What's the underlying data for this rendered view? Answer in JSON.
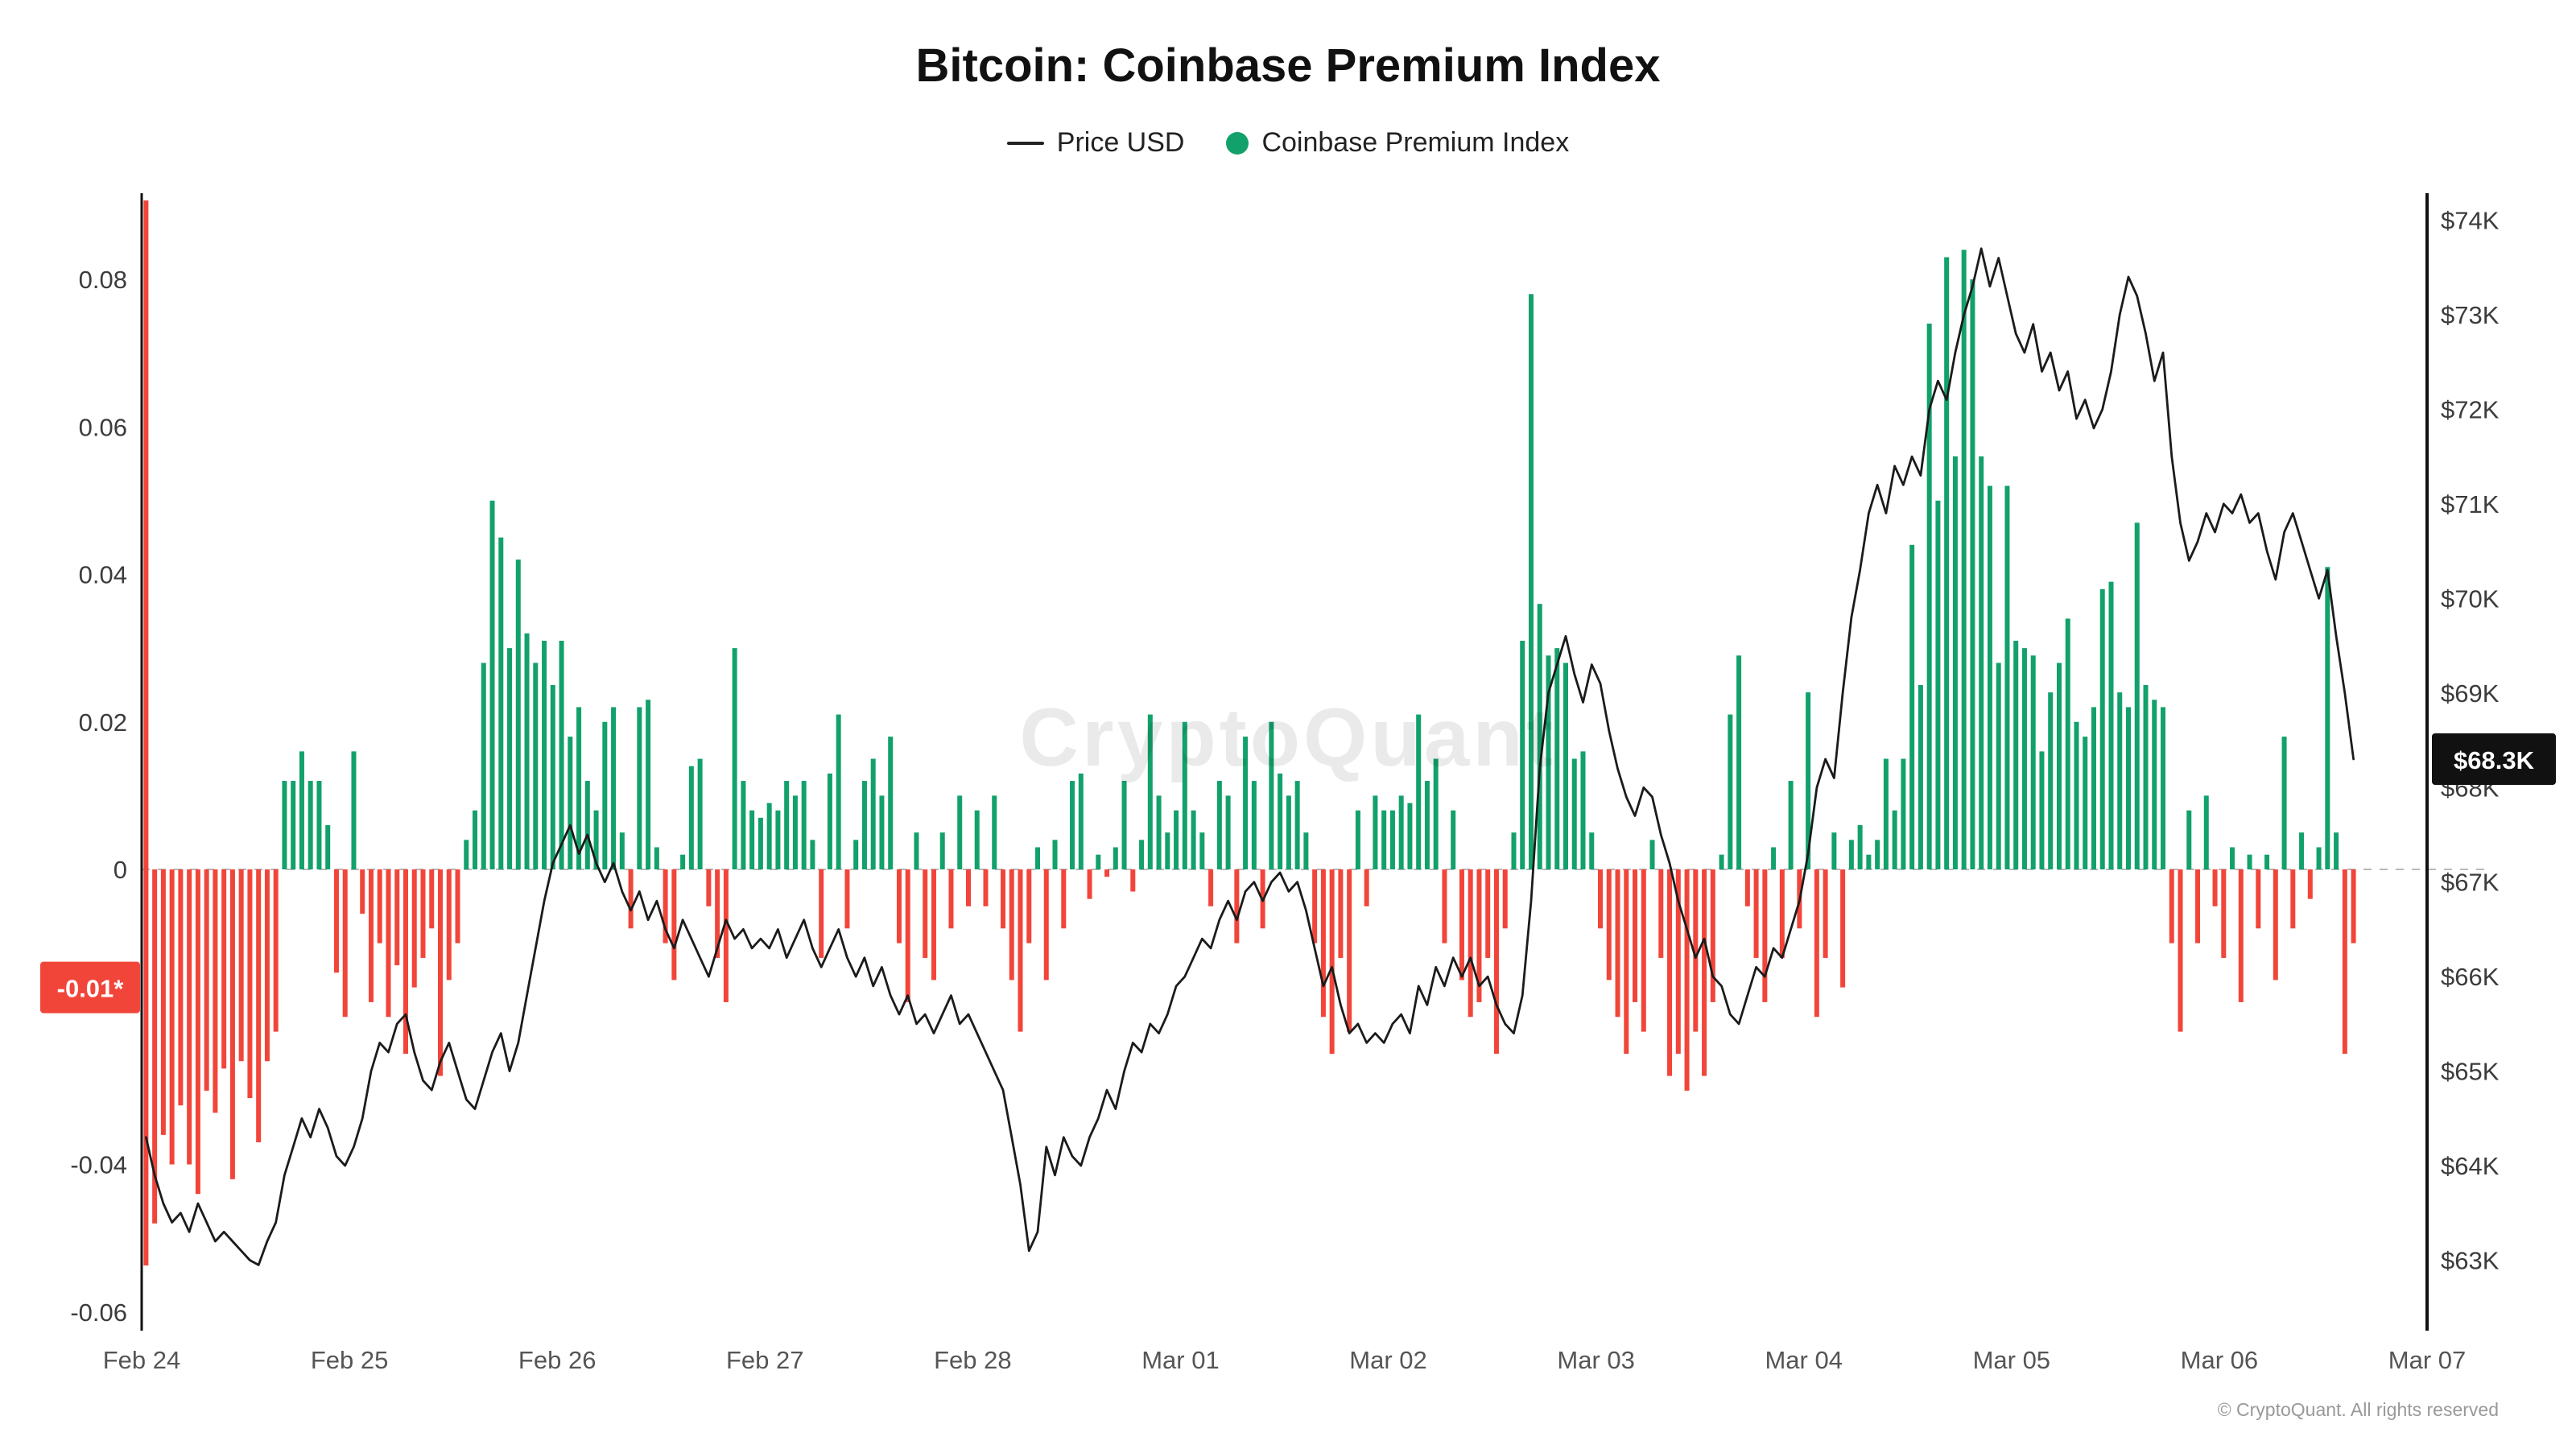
{
  "title": "Bitcoin: Coinbase Premium Index",
  "legend": {
    "price_label": "Price USD",
    "premium_label": "Coinbase Premium Index"
  },
  "watermark": "CryptoQuant",
  "footer": "© CryptoQuant. All rights reserved",
  "colors": {
    "positive": "#12a16b",
    "negative": "#f2453a",
    "price_line": "#1b1b1b",
    "zero_line": "#b8b8b8",
    "axis_line": "#111111",
    "tick_text": "#3c3c3c",
    "x_text": "#555555",
    "badge_premium_bg": "#f2453a",
    "badge_price_bg": "#111111",
    "badge_text": "#ffffff"
  },
  "badges": {
    "premium": {
      "text": "-0.01*",
      "position_value": -0.016
    },
    "price": {
      "text": "$68.3K",
      "position_value": 68.3
    }
  },
  "axes": {
    "left": {
      "values": [
        0.08,
        0.06,
        0.04,
        0.02,
        0,
        -0.04,
        -0.06
      ],
      "labels": [
        "0.08",
        "0.06",
        "0.04",
        "0.02",
        "0",
        "-0.04",
        "-0.06"
      ],
      "range": [
        -0.0625,
        0.0917
      ]
    },
    "right": {
      "values": [
        74,
        73,
        72,
        71,
        70,
        69,
        68,
        67,
        66,
        65,
        64,
        63
      ],
      "labels": [
        "$74K",
        "$73K",
        "$72K",
        "$71K",
        "$70K",
        "$69K",
        "$68K",
        "$67K",
        "$66K",
        "$65K",
        "$64K",
        "$63K"
      ],
      "range": [
        62.3,
        74.3
      ]
    },
    "x": {
      "labels": [
        "Feb 24",
        "Feb 25",
        "Feb 26",
        "Feb 27",
        "Feb 28",
        "Mar 01",
        "Mar 02",
        "Mar 03",
        "Mar 04",
        "Mar 05",
        "Mar 06",
        "Mar 07"
      ],
      "days_span": 11
    }
  },
  "chart_data": {
    "type": "bar",
    "x_start": "Feb 24 00:00",
    "interval": "1h",
    "grid": false,
    "legend_position": "top",
    "first_bar_full_span": true,
    "series": [
      {
        "name": "Coinbase Premium Index",
        "type": "bar",
        "axis": "left",
        "values": [
          -0.055,
          -0.048,
          -0.036,
          -0.04,
          -0.032,
          -0.04,
          -0.044,
          -0.03,
          -0.033,
          -0.027,
          -0.042,
          -0.026,
          -0.031,
          -0.037,
          -0.026,
          -0.022,
          0.012,
          0.012,
          0.016,
          0.012,
          0.012,
          0.006,
          -0.014,
          -0.02,
          0.016,
          -0.006,
          -0.018,
          -0.01,
          -0.02,
          -0.013,
          -0.025,
          -0.016,
          -0.012,
          -0.008,
          -0.028,
          -0.015,
          -0.01,
          0.004,
          0.008,
          0.028,
          0.05,
          0.045,
          0.03,
          0.042,
          0.032,
          0.028,
          0.031,
          0.025,
          0.031,
          0.018,
          0.022,
          0.012,
          0.008,
          0.02,
          0.022,
          0.005,
          -0.008,
          0.022,
          0.023,
          0.003,
          -0.01,
          -0.015,
          0.002,
          0.014,
          0.015,
          -0.005,
          -0.012,
          -0.018,
          0.03,
          0.012,
          0.008,
          0.007,
          0.009,
          0.008,
          0.012,
          0.01,
          0.012,
          0.004,
          -0.012,
          0.013,
          0.021,
          -0.008,
          0.004,
          0.012,
          0.015,
          0.01,
          0.018,
          -0.01,
          -0.018,
          0.005,
          -0.012,
          -0.015,
          0.005,
          -0.008,
          0.01,
          -0.005,
          0.008,
          -0.005,
          0.01,
          -0.008,
          -0.015,
          -0.022,
          -0.01,
          0.003,
          -0.015,
          0.004,
          -0.008,
          0.012,
          0.013,
          -0.004,
          0.002,
          -0.001,
          0.003,
          0.012,
          -0.003,
          0.004,
          0.021,
          0.01,
          0.005,
          0.008,
          0.02,
          0.008,
          0.005,
          -0.005,
          0.012,
          0.01,
          -0.01,
          0.018,
          0.012,
          -0.008,
          0.02,
          0.013,
          0.01,
          0.012,
          0.005,
          -0.01,
          -0.02,
          -0.025,
          -0.012,
          -0.022,
          0.008,
          -0.005,
          0.01,
          0.008,
          0.008,
          0.01,
          0.009,
          0.021,
          0.012,
          0.015,
          -0.01,
          0.008,
          -0.015,
          -0.02,
          -0.018,
          -0.012,
          -0.025,
          -0.008,
          0.005,
          0.031,
          0.078,
          0.036,
          0.029,
          0.03,
          0.028,
          0.015,
          0.016,
          0.005,
          -0.008,
          -0.015,
          -0.02,
          -0.025,
          -0.018,
          -0.022,
          0.004,
          -0.012,
          -0.028,
          -0.025,
          -0.03,
          -0.022,
          -0.028,
          -0.018,
          0.002,
          0.021,
          0.029,
          -0.005,
          -0.012,
          -0.018,
          0.003,
          -0.012,
          0.012,
          -0.008,
          0.024,
          -0.02,
          -0.012,
          0.005,
          -0.016,
          0.004,
          0.006,
          0.002,
          0.004,
          0.015,
          0.008,
          0.015,
          0.044,
          0.025,
          0.074,
          0.05,
          0.083,
          0.056,
          0.084,
          0.08,
          0.056,
          0.052,
          0.028,
          0.052,
          0.031,
          0.03,
          0.029,
          0.016,
          0.024,
          0.028,
          0.034,
          0.02,
          0.018,
          0.022,
          0.038,
          0.039,
          0.024,
          0.022,
          0.047,
          0.025,
          0.023,
          0.022,
          -0.01,
          -0.022,
          0.008,
          -0.01,
          0.01,
          -0.005,
          -0.012,
          0.003,
          -0.018,
          0.002,
          -0.008,
          0.002,
          -0.015,
          0.018,
          -0.008,
          0.005,
          -0.004,
          0.003,
          0.041,
          0.005,
          -0.025,
          -0.01
        ]
      },
      {
        "name": "Price USD",
        "type": "line",
        "axis": "right",
        "unit": "K USD",
        "values": [
          64.3,
          63.9,
          63.6,
          63.4,
          63.5,
          63.3,
          63.6,
          63.4,
          63.2,
          63.3,
          63.2,
          63.1,
          63.0,
          62.95,
          63.2,
          63.4,
          63.9,
          64.2,
          64.5,
          64.3,
          64.6,
          64.4,
          64.1,
          64.0,
          64.2,
          64.5,
          65.0,
          65.3,
          65.2,
          65.5,
          65.6,
          65.2,
          64.9,
          64.8,
          65.1,
          65.3,
          65.0,
          64.7,
          64.6,
          64.9,
          65.2,
          65.4,
          65.0,
          65.3,
          65.8,
          66.3,
          66.8,
          67.2,
          67.4,
          67.6,
          67.3,
          67.5,
          67.2,
          67.0,
          67.2,
          66.9,
          66.7,
          66.9,
          66.6,
          66.8,
          66.5,
          66.3,
          66.6,
          66.4,
          66.2,
          66.0,
          66.3,
          66.6,
          66.4,
          66.5,
          66.3,
          66.4,
          66.3,
          66.5,
          66.2,
          66.4,
          66.6,
          66.3,
          66.1,
          66.3,
          66.5,
          66.2,
          66.0,
          66.2,
          65.9,
          66.1,
          65.8,
          65.6,
          65.8,
          65.5,
          65.6,
          65.4,
          65.6,
          65.8,
          65.5,
          65.6,
          65.4,
          65.2,
          65.0,
          64.8,
          64.3,
          63.8,
          63.1,
          63.3,
          64.2,
          63.9,
          64.3,
          64.1,
          64.0,
          64.3,
          64.5,
          64.8,
          64.6,
          65.0,
          65.3,
          65.2,
          65.5,
          65.4,
          65.6,
          65.9,
          66.0,
          66.2,
          66.4,
          66.3,
          66.6,
          66.8,
          66.6,
          66.9,
          67.0,
          66.8,
          67.0,
          67.1,
          66.9,
          67.0,
          66.7,
          66.3,
          65.9,
          66.1,
          65.7,
          65.4,
          65.5,
          65.3,
          65.4,
          65.3,
          65.5,
          65.6,
          65.4,
          65.9,
          65.7,
          66.1,
          65.9,
          66.2,
          66.0,
          66.2,
          65.9,
          66.0,
          65.7,
          65.5,
          65.4,
          65.8,
          66.8,
          68.2,
          69.0,
          69.3,
          69.6,
          69.2,
          68.9,
          69.3,
          69.1,
          68.6,
          68.2,
          67.9,
          67.7,
          68.0,
          67.9,
          67.5,
          67.2,
          66.8,
          66.5,
          66.2,
          66.4,
          66.0,
          65.9,
          65.6,
          65.5,
          65.8,
          66.1,
          66.0,
          66.3,
          66.2,
          66.5,
          66.8,
          67.3,
          68.0,
          68.3,
          68.1,
          69.0,
          69.8,
          70.3,
          70.9,
          71.2,
          70.9,
          71.4,
          71.2,
          71.5,
          71.3,
          72.0,
          72.3,
          72.1,
          72.6,
          73.0,
          73.3,
          73.7,
          73.3,
          73.6,
          73.2,
          72.8,
          72.6,
          72.9,
          72.4,
          72.6,
          72.2,
          72.4,
          71.9,
          72.1,
          71.8,
          72.0,
          72.4,
          73.0,
          73.4,
          73.2,
          72.8,
          72.3,
          72.6,
          71.5,
          70.8,
          70.4,
          70.6,
          70.9,
          70.7,
          71.0,
          70.9,
          71.1,
          70.8,
          70.9,
          70.5,
          70.2,
          70.7,
          70.9,
          70.6,
          70.3,
          70.0,
          70.3,
          69.6,
          69.0,
          68.3
        ]
      }
    ]
  }
}
